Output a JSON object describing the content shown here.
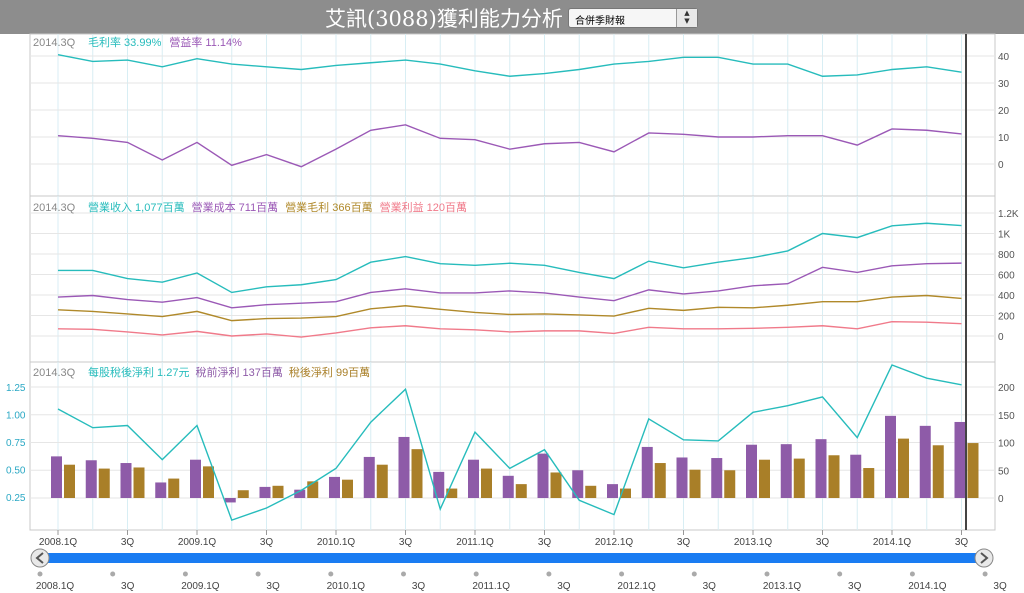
{
  "header": {
    "title": "艾訊(3088)獲利能力分析",
    "period_select": {
      "value": "合併季財報"
    }
  },
  "navigator": {
    "left_arrow_icon": "chevron-left-icon",
    "right_arrow_icon": "chevron-right-icon",
    "labels": [
      "2008.1Q",
      "3Q",
      "2009.1Q",
      "3Q",
      "2010.1Q",
      "3Q",
      "2011.1Q",
      "3Q",
      "2012.1Q",
      "3Q",
      "2013.1Q",
      "3Q",
      "2014.1Q",
      "3Q"
    ]
  },
  "chart_data": [
    {
      "type": "line",
      "panel": "margins",
      "period": "2014.3Q",
      "categories": [
        "2008.1Q",
        "2Q",
        "3Q",
        "4Q",
        "2009.1Q",
        "2Q",
        "3Q",
        "4Q",
        "2010.1Q",
        "2Q",
        "3Q",
        "4Q",
        "2011.1Q",
        "2Q",
        "3Q",
        "4Q",
        "2012.1Q",
        "2Q",
        "3Q",
        "4Q",
        "2013.1Q",
        "2Q",
        "3Q",
        "4Q",
        "2014.1Q",
        "2Q",
        "3Q"
      ],
      "series": [
        {
          "name": "毛利率",
          "display_value": "33.99%",
          "color": "#27bcbc",
          "values": [
            40.5,
            38,
            38.5,
            36,
            39,
            37,
            36,
            35,
            36.5,
            37.5,
            38.5,
            37,
            34.5,
            32.5,
            33.5,
            35,
            37,
            38,
            39.5,
            39.5,
            37,
            37,
            32.5,
            33,
            35,
            36,
            33.99
          ]
        },
        {
          "name": "營益率",
          "display_value": "11.14%",
          "color": "#9b59b6",
          "values": [
            10.5,
            9.5,
            8,
            1.5,
            8,
            -0.5,
            3.5,
            -1,
            5.5,
            12.5,
            14.5,
            9.5,
            9,
            5.5,
            7.5,
            8,
            4.5,
            11.5,
            11,
            10,
            10,
            10.5,
            10.5,
            7,
            13,
            12.5,
            11.14
          ]
        }
      ],
      "y_ticks": [
        0,
        10,
        20,
        30,
        40
      ],
      "ylim": [
        -4,
        46
      ],
      "grid": true
    },
    {
      "type": "line",
      "panel": "revenue",
      "period": "2014.3Q",
      "unit": "百萬",
      "categories": [
        "2008.1Q",
        "2Q",
        "3Q",
        "4Q",
        "2009.1Q",
        "2Q",
        "3Q",
        "4Q",
        "2010.1Q",
        "2Q",
        "3Q",
        "4Q",
        "2011.1Q",
        "2Q",
        "3Q",
        "4Q",
        "2012.1Q",
        "2Q",
        "3Q",
        "4Q",
        "2013.1Q",
        "2Q",
        "3Q",
        "4Q",
        "2014.1Q",
        "2Q",
        "3Q"
      ],
      "series": [
        {
          "name": "營業收入",
          "display_value": "1,077百萬",
          "color": "#27bcbc",
          "values": [
            640,
            640,
            560,
            525,
            615,
            425,
            480,
            500,
            550,
            720,
            775,
            705,
            690,
            710,
            690,
            620,
            560,
            730,
            665,
            720,
            765,
            830,
            1000,
            960,
            1075,
            1100,
            1077
          ]
        },
        {
          "name": "營業成本",
          "display_value": "711百萬",
          "color": "#9b59b6",
          "values": [
            380,
            395,
            355,
            330,
            375,
            275,
            305,
            320,
            335,
            425,
            460,
            420,
            420,
            440,
            420,
            380,
            345,
            450,
            410,
            440,
            490,
            510,
            670,
            620,
            685,
            705,
            711
          ]
        },
        {
          "name": "營業毛利",
          "display_value": "366百萬",
          "color": "#b0892a",
          "values": [
            255,
            240,
            215,
            190,
            240,
            150,
            170,
            175,
            190,
            265,
            295,
            260,
            230,
            210,
            215,
            205,
            195,
            270,
            250,
            280,
            275,
            300,
            335,
            335,
            380,
            395,
            366
          ]
        },
        {
          "name": "營業利益",
          "display_value": "120百萬",
          "color": "#f07a8a",
          "values": [
            70,
            65,
            40,
            10,
            45,
            0,
            20,
            -10,
            30,
            80,
            100,
            70,
            60,
            40,
            50,
            50,
            25,
            85,
            70,
            70,
            75,
            85,
            100,
            70,
            140,
            135,
            120
          ]
        }
      ],
      "y_ticks": [
        0,
        200,
        400,
        600,
        800,
        "1K",
        "1.2K"
      ],
      "ylim": [
        -70,
        1270
      ],
      "grid": true
    },
    {
      "type": "bar",
      "panel": "eps",
      "period": "2014.3Q",
      "categories": [
        "2008.1Q",
        "2Q",
        "3Q",
        "4Q",
        "2009.1Q",
        "2Q",
        "3Q",
        "4Q",
        "2010.1Q",
        "2Q",
        "3Q",
        "4Q",
        "2011.1Q",
        "2Q",
        "3Q",
        "4Q",
        "2012.1Q",
        "2Q",
        "3Q",
        "4Q",
        "2013.1Q",
        "2Q",
        "3Q",
        "4Q",
        "2014.1Q",
        "2Q",
        "3Q"
      ],
      "series": [
        {
          "name": "每股稅後淨利",
          "display_value": "1.27元",
          "color": "#27bcbc",
          "kind": "line",
          "axis": "left",
          "values": [
            1.05,
            0.88,
            0.9,
            0.59,
            0.9,
            0.04,
            0.15,
            0.31,
            0.51,
            0.93,
            1.23,
            0.14,
            0.84,
            0.51,
            0.68,
            0.22,
            0.09,
            0.96,
            0.77,
            0.76,
            1.02,
            1.08,
            1.16,
            0.79,
            1.45,
            1.33,
            1.27
          ]
        },
        {
          "name": "稅前淨利",
          "display_value": "137百萬",
          "color": "#8e5ba8",
          "kind": "bar",
          "axis": "right",
          "values": [
            75,
            68,
            63,
            28,
            69,
            -8,
            20,
            15,
            38,
            74,
            110,
            47,
            69,
            40,
            80,
            50,
            25,
            92,
            73,
            72,
            96,
            97,
            106,
            78,
            148,
            130,
            137
          ]
        },
        {
          "name": "稅後淨利",
          "display_value": "99百萬",
          "color": "#a97f28",
          "kind": "bar",
          "axis": "right",
          "values": [
            60,
            53,
            55,
            35,
            57,
            14,
            22,
            30,
            33,
            60,
            88,
            17,
            53,
            25,
            46,
            22,
            17,
            63,
            51,
            50,
            69,
            71,
            77,
            54,
            107,
            95,
            99
          ]
        }
      ],
      "y_left_ticks": [
        "0.25",
        "0.50",
        "0.75",
        "1.00",
        "1.25"
      ],
      "y_left_range": [
        0.25,
        1.25
      ],
      "y_right_ticks": [
        0,
        50,
        100,
        150,
        200
      ],
      "y_right_range": [
        0,
        200
      ],
      "grid": true
    }
  ],
  "x_axis_labels": [
    "2008.1Q",
    "3Q",
    "2009.1Q",
    "3Q",
    "2010.1Q",
    "3Q",
    "2011.1Q",
    "3Q",
    "2012.1Q",
    "3Q",
    "2013.1Q",
    "3Q",
    "2014.1Q",
    "3Q"
  ]
}
